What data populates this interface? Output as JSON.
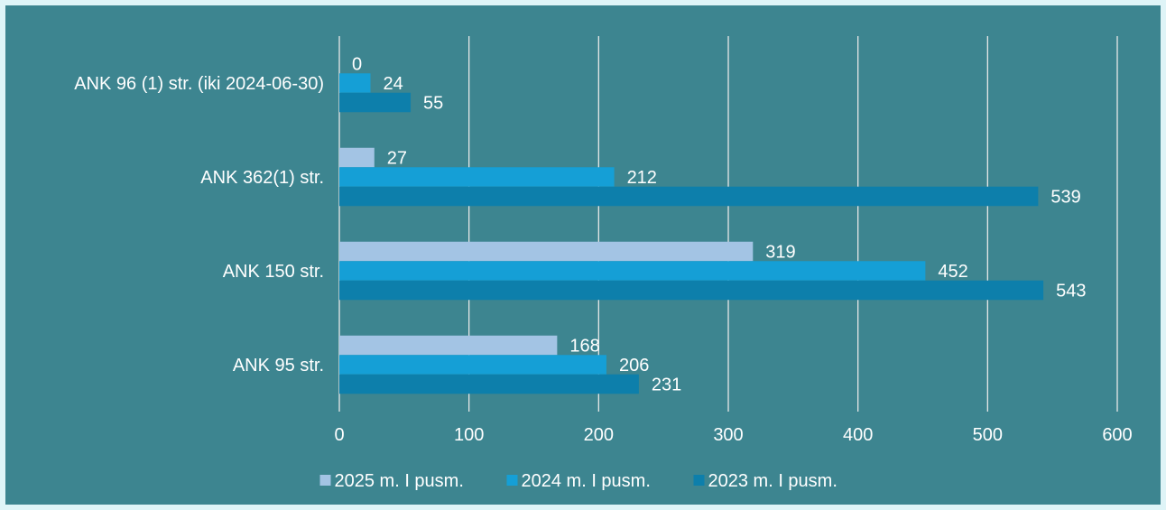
{
  "chart_data": {
    "type": "bar",
    "orientation": "horizontal",
    "categories": [
      "ANK 96 (1) str. (iki 2024-06-30)",
      "ANK 362(1) str.",
      "ANK 150 str.",
      "ANK 95 str."
    ],
    "series": [
      {
        "name": "2025 m. I pusm.",
        "color": "#a3c4e4",
        "values": [
          0,
          27,
          319,
          168
        ]
      },
      {
        "name": "2024 m. I pusm.",
        "color": "#159fd6",
        "values": [
          24,
          212,
          452,
          206
        ]
      },
      {
        "name": "2023 m. I pusm.",
        "color": "#0d7fab",
        "values": [
          55,
          539,
          543,
          231
        ]
      }
    ],
    "xlim": [
      0,
      600
    ],
    "x_ticks": [
      0,
      100,
      200,
      300,
      400,
      500,
      600
    ],
    "grid": "vertical",
    "legend_position": "bottom",
    "title": "",
    "xlabel": "",
    "ylabel": ""
  }
}
